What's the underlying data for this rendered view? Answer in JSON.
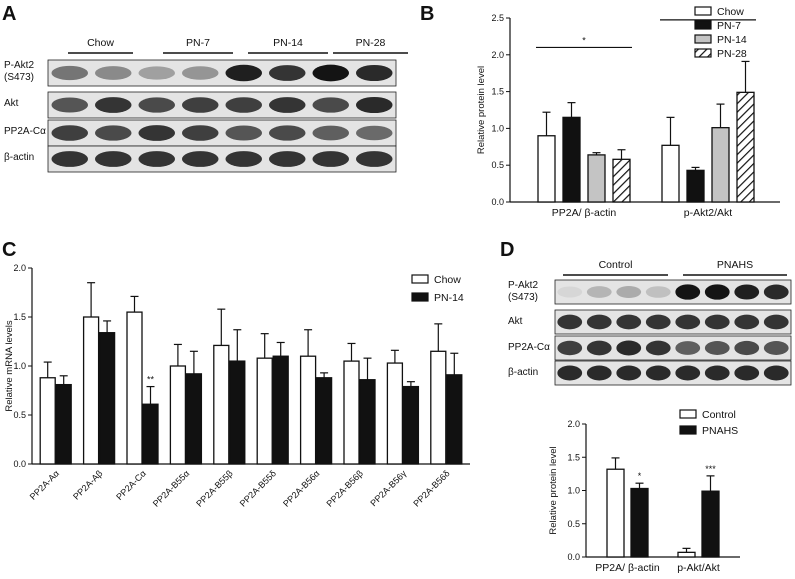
{
  "panels": {
    "A": {
      "letter": "A",
      "groups": [
        "Chow",
        "PN-7",
        "PN-14",
        "PN-28"
      ],
      "rows": [
        {
          "label_line1": "P-Akt2",
          "label_line2": "(S473)",
          "intensities": [
            0.55,
            0.45,
            0.35,
            0.4,
            0.95,
            0.85,
            1.0,
            0.9
          ]
        },
        {
          "label_line1": "Akt",
          "label_line2": "",
          "intensities": [
            0.7,
            0.85,
            0.75,
            0.8,
            0.8,
            0.85,
            0.75,
            0.9
          ]
        },
        {
          "label_line1": "PP2A-Cα",
          "label_line2": "",
          "intensities": [
            0.8,
            0.75,
            0.85,
            0.8,
            0.7,
            0.75,
            0.65,
            0.6
          ]
        },
        {
          "label_line1": "β-actin",
          "label_line2": "",
          "intensities": [
            0.85,
            0.85,
            0.85,
            0.85,
            0.85,
            0.85,
            0.85,
            0.85
          ]
        }
      ]
    },
    "D_blot": {
      "letter": "D",
      "groups": [
        "Control",
        "PNAHS"
      ],
      "rows": [
        {
          "label_line1": "P-Akt2",
          "label_line2": "(S473)",
          "intensities": [
            0.1,
            0.25,
            0.3,
            0.2,
            1.0,
            1.0,
            0.95,
            0.9
          ]
        },
        {
          "label_line1": "Akt",
          "label_line2": "",
          "intensities": [
            0.85,
            0.85,
            0.85,
            0.85,
            0.85,
            0.85,
            0.85,
            0.85
          ]
        },
        {
          "label_line1": "PP2A-Cα",
          "label_line2": "",
          "intensities": [
            0.8,
            0.85,
            0.9,
            0.85,
            0.65,
            0.7,
            0.75,
            0.7
          ]
        },
        {
          "label_line1": "β-actin",
          "label_line2": "",
          "intensities": [
            0.9,
            0.9,
            0.9,
            0.9,
            0.9,
            0.9,
            0.9,
            0.9
          ]
        }
      ]
    },
    "C_letter": "C",
    "B_letter": "B"
  },
  "colors": {
    "black": "#111111",
    "grey": "#c4c4c4",
    "white": "#ffffff"
  },
  "chart_data": [
    {
      "id": "B",
      "type": "bar",
      "ylabel": "Relative protein level",
      "ylim": [
        0,
        2.5
      ],
      "yticks": [
        "0.0",
        "0.5",
        "1.0",
        "1.5",
        "2.0",
        "2.5"
      ],
      "categories": [
        "PP2A/  β-actin",
        "p-Akt2/Akt"
      ],
      "series": [
        {
          "name": "Chow",
          "fill": "white",
          "values": [
            0.9,
            0.77
          ],
          "errors": [
            0.32,
            0.38
          ]
        },
        {
          "name": "PN-7",
          "fill": "black",
          "values": [
            1.15,
            0.43
          ],
          "errors": [
            0.2,
            0.04
          ]
        },
        {
          "name": "PN-14",
          "fill": "grey",
          "values": [
            0.64,
            1.01
          ],
          "errors": [
            0.03,
            0.32
          ]
        },
        {
          "name": "PN-28",
          "fill": "hatch",
          "values": [
            0.58,
            1.49
          ],
          "errors": [
            0.13,
            0.42
          ]
        }
      ],
      "annotations": [
        {
          "text": "*",
          "category_span": [
            0,
            0
          ],
          "bracket": true,
          "y": 2.1
        },
        {
          "text": "*",
          "category_span": [
            1,
            1
          ],
          "bracket": true,
          "y": 2.7
        }
      ],
      "legend": "top-right"
    },
    {
      "id": "C",
      "type": "bar",
      "ylabel": "Relative mRNA levels",
      "ylim": [
        0,
        2.0
      ],
      "yticks": [
        "0.0",
        "0.5",
        "1.0",
        "1.5",
        "2.0"
      ],
      "categories": [
        "PP2A-Aα",
        "PP2A-Aβ",
        "PP2A-Cα",
        "PP2A-B55α",
        "PP2A-B55β",
        "PP2A-B55δ",
        "PP2A-B56α",
        "PP2A-B56β",
        "PP2A-B56γ",
        "PP2A-B56δ"
      ],
      "series": [
        {
          "name": "Chow",
          "fill": "white",
          "values": [
            0.88,
            1.5,
            1.55,
            1.0,
            1.21,
            1.08,
            1.1,
            1.05,
            1.03,
            1.15
          ],
          "errors": [
            0.16,
            0.35,
            0.16,
            0.22,
            0.37,
            0.25,
            0.27,
            0.18,
            0.13,
            0.28
          ]
        },
        {
          "name": "PN-14",
          "fill": "black",
          "values": [
            0.81,
            1.34,
            0.61,
            0.92,
            1.05,
            1.1,
            0.88,
            0.86,
            0.79,
            0.91
          ],
          "errors": [
            0.09,
            0.12,
            0.18,
            0.23,
            0.32,
            0.14,
            0.05,
            0.22,
            0.05,
            0.22
          ]
        }
      ],
      "annotations": [
        {
          "text": "**",
          "category": 2,
          "series": 1
        }
      ],
      "legend": "top-right"
    },
    {
      "id": "D",
      "type": "bar",
      "ylabel": "Relative protein level",
      "ylim": [
        0,
        2.0
      ],
      "yticks": [
        "0.0",
        "0.5",
        "1.0",
        "1.5",
        "2.0"
      ],
      "categories": [
        "PP2A/  β-actin",
        "p-Akt/Akt"
      ],
      "series": [
        {
          "name": "Control",
          "fill": "white",
          "values": [
            1.32,
            0.07
          ],
          "errors": [
            0.17,
            0.06
          ]
        },
        {
          "name": "PNAHS",
          "fill": "black",
          "values": [
            1.03,
            0.99
          ],
          "errors": [
            0.08,
            0.23
          ]
        }
      ],
      "annotations": [
        {
          "text": "*",
          "category": 0,
          "series": 1
        },
        {
          "text": "***",
          "category": 1,
          "series": 1
        }
      ],
      "legend": "top-right"
    }
  ]
}
